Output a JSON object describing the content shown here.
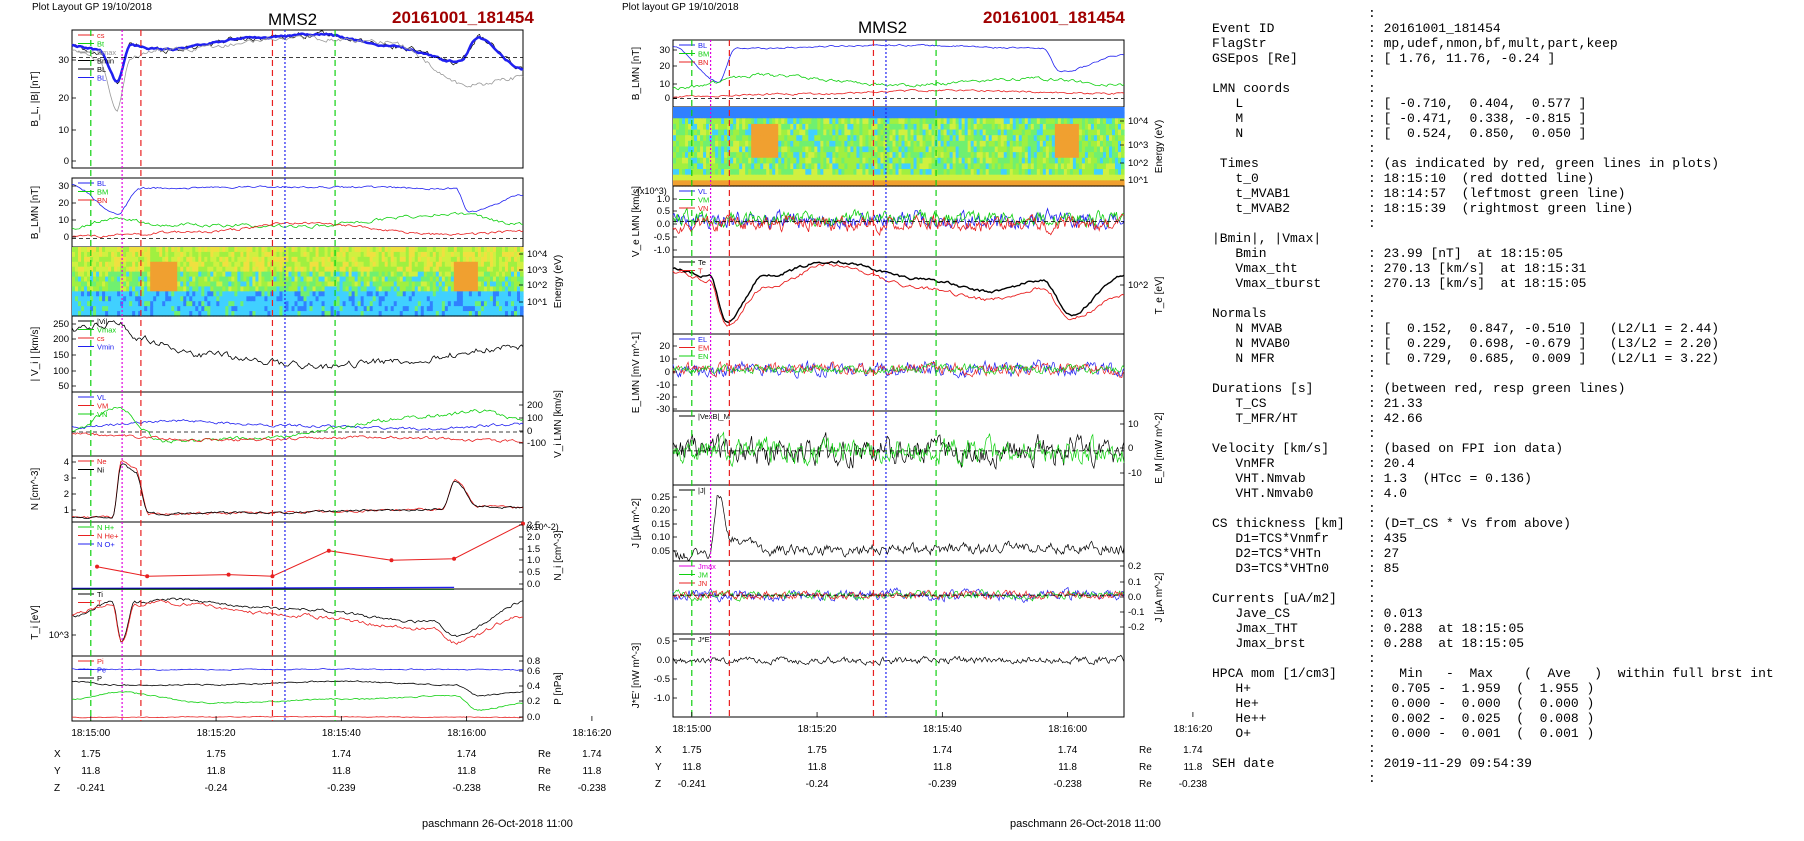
{
  "left_plot": {
    "layout_label": "Plot Layout GP 19/10/2018",
    "spacecraft": "MMS2",
    "event": "20161001_181454",
    "credit": "paschmann 26-Oct-2018 11:00",
    "time_ticks": [
      "18:15:00",
      "18:15:20",
      "18:15:40",
      "18:16:00",
      "18:16:20"
    ],
    "pos_rows": [
      {
        "label": "X",
        "values": [
          "1.75",
          "1.75",
          "1.74",
          "1.74",
          "1.74"
        ],
        "unit": "Re"
      },
      {
        "label": "Y",
        "values": [
          "11.8",
          "11.8",
          "11.8",
          "11.8",
          "11.8"
        ],
        "unit": "Re"
      },
      {
        "label": "Z",
        "values": [
          "-0.241",
          "-0.24",
          "-0.239",
          "-0.238",
          "-0.238"
        ],
        "unit": "Re"
      }
    ]
  },
  "right_plot": {
    "layout_label": "Plot layout GP 19/10/2018",
    "spacecraft": "MMS2",
    "event": "20161001_181454",
    "credit": "paschmann 26-Oct-2018 11:00",
    "time_ticks": [
      "18:15:00",
      "18:15:20",
      "18:15:40",
      "18:16:00",
      "18:16:20"
    ],
    "pos_rows": [
      {
        "label": "X",
        "values": [
          "1.75",
          "1.75",
          "1.74",
          "1.74",
          "1.74"
        ],
        "unit": "Re"
      },
      {
        "label": "Y",
        "values": [
          "11.8",
          "11.8",
          "11.8",
          "11.8",
          "11.8"
        ],
        "unit": "Re"
      },
      {
        "label": "Z",
        "values": [
          "-0.241",
          "-0.24",
          "-0.239",
          "-0.238",
          "-0.238"
        ],
        "unit": "Re"
      }
    ]
  },
  "chart_data": [
    {
      "type": "line",
      "panel": "left-1",
      "ylabel": "B_L, |B| [nT]",
      "ylim": [
        0,
        35
      ],
      "yticks": [
        "0",
        "10",
        "20",
        "30"
      ],
      "legend": [
        "cs",
        "Bt",
        "Bmax",
        "Bmin",
        "BL",
        "BL"
      ]
    },
    {
      "type": "line",
      "panel": "left-2",
      "ylabel": "B_LMN [nT]",
      "ylim": [
        -5,
        35
      ],
      "yticks": [
        "0",
        "10",
        "20",
        "30"
      ],
      "legend": [
        "BL",
        "BM",
        "BN"
      ]
    },
    {
      "type": "heatmap",
      "panel": "left-3",
      "ylabel": "Energy (eV)",
      "yticks": [
        "10^4",
        "10^3",
        "10^2",
        "10^1"
      ]
    },
    {
      "type": "line",
      "panel": "left-4",
      "ylabel": "| V_i | [km/s]",
      "ylim": [
        0,
        270
      ],
      "yticks": [
        "50",
        "100",
        "150",
        "200",
        "250"
      ],
      "legend": [
        "|Vi|",
        "Vmax",
        "cs",
        "Vmin"
      ]
    },
    {
      "type": "line",
      "panel": "left-5",
      "ylabel": "V_i LMN [km/s]",
      "ylim": [
        -150,
        250
      ],
      "yticks": [
        "200",
        "100",
        "0",
        "-100"
      ],
      "legend": [
        "VL",
        "VM",
        "VN"
      ]
    },
    {
      "type": "line",
      "panel": "left-6",
      "ylabel": "N [cm^-3]",
      "ylim": [
        0,
        4.2
      ],
      "yticks": [
        "1",
        "2",
        "3",
        "4"
      ],
      "legend": [
        "Ne",
        "Ni"
      ]
    },
    {
      "type": "line",
      "panel": "left-7",
      "ylabel": "N_i [cm^-3]",
      "ylim": [
        0,
        2.1
      ],
      "yticks": [
        "0.0",
        "0.5",
        "1.0",
        "1.5",
        "2.0",
        "2.5"
      ],
      "annotation": "(x10^-2)",
      "legend": [
        "N H+",
        "N He+",
        "N O+"
      ],
      "series": [
        {
          "name": "N He+",
          "x_s": [
            1,
            9,
            22,
            29,
            38,
            48,
            58,
            69
          ],
          "values": [
            0.7,
            0.4,
            0.45,
            0.4,
            1.2,
            0.9,
            0.95,
            2.05
          ]
        }
      ]
    },
    {
      "type": "line",
      "panel": "left-8",
      "ylabel": "T_i [eV]",
      "yticks": [
        "10^3"
      ],
      "legend": [
        "Ti",
        "T"
      ]
    },
    {
      "type": "line",
      "panel": "left-9",
      "ylabel": "P [nPa]",
      "ylim": [
        0,
        0.9
      ],
      "yticks": [
        "0.0",
        "0.2",
        "0.4",
        "0.6",
        "0.8"
      ],
      "legend": [
        "Pi",
        "Pe",
        "P"
      ]
    },
    {
      "type": "line",
      "panel": "right-1",
      "ylabel": "B_LMN [nT]",
      "ylim": [
        -5,
        35
      ],
      "yticks": [
        "0",
        "10",
        "20",
        "30"
      ],
      "legend": [
        "BL",
        "BM",
        "BN"
      ]
    },
    {
      "type": "heatmap",
      "panel": "right-2",
      "ylabel": "Energy (eV)",
      "yticks": [
        "10^4",
        "10^3",
        "10^2",
        "10^1"
      ]
    },
    {
      "type": "line",
      "panel": "right-3",
      "ylabel": "V_e LMN [km/s]",
      "annotation": "(x10^3)",
      "ylim": [
        -1.3,
        1.3
      ],
      "yticks": [
        "1.0",
        "0.5",
        "0.0",
        "-0.5",
        "-1.0"
      ],
      "legend": [
        "VL",
        "VM",
        "VN"
      ]
    },
    {
      "type": "line",
      "panel": "right-4",
      "ylabel": "T_e [eV]",
      "yticks": [
        "10^2"
      ],
      "legend": [
        "Te",
        "T"
      ]
    },
    {
      "type": "line",
      "panel": "right-5",
      "ylabel": "E_LMN [mV m^-1]",
      "ylim": [
        -30,
        25
      ],
      "yticks": [
        "20",
        "10",
        "0",
        "-10",
        "-20",
        "-30"
      ],
      "legend": [
        "EL",
        "EM",
        "EN"
      ]
    },
    {
      "type": "line",
      "panel": "right-6",
      "ylabel": "E_M [mW m^-2]",
      "ylim": [
        -12,
        14
      ],
      "yticks": [
        "10",
        "0",
        "-10"
      ],
      "legend": [
        "|VexB|_M"
      ]
    },
    {
      "type": "line",
      "panel": "right-7",
      "ylabel": "J [μA m^-2]",
      "ylim": [
        0,
        0.28
      ],
      "yticks": [
        "0.25",
        "0.20",
        "0.15",
        "0.10",
        "0.05"
      ],
      "legend": [
        "|J|"
      ]
    },
    {
      "type": "line",
      "panel": "right-8",
      "ylabel": "J [μA m^-2]",
      "ylim": [
        -0.25,
        0.22
      ],
      "yticks": [
        "0.2",
        "0.1",
        "0.0",
        "-0.1",
        "-0.2"
      ],
      "legend": [
        "Jmax",
        "JM",
        "JN"
      ]
    },
    {
      "type": "line",
      "panel": "right-9",
      "ylabel": "J*E' [nW m^-3]",
      "ylim": [
        -1.3,
        0.6
      ],
      "yticks": [
        "0.5",
        "0.0",
        "-0.5",
        "-1.0"
      ],
      "legend": [
        "J*E'"
      ]
    }
  ],
  "info": {
    "lines": [
      [
        "",
        ":"
      ],
      [
        "Event ID",
        ": 20161001_181454"
      ],
      [
        "FlagStr",
        ": mp,udef,nmon,bf,mult,part,keep"
      ],
      [
        "GSEpos [Re]",
        ": [ 1.76, 11.76, -0.24 ]"
      ],
      [
        "",
        ":"
      ],
      [
        "LMN coords",
        ":"
      ],
      [
        "   L",
        ": [ -0.710,  0.404,  0.577 ]"
      ],
      [
        "   M",
        ": [ -0.471,  0.338, -0.815 ]"
      ],
      [
        "   N",
        ": [  0.524,  0.850,  0.050 ]"
      ],
      [
        "",
        ":"
      ],
      [
        " Times",
        ": (as indicated by red, green lines in plots)"
      ],
      [
        "   t_0",
        ": 18:15:10  (red dotted line)"
      ],
      [
        "   t_MVAB1",
        ": 18:14:57  (leftmost green line)"
      ],
      [
        "   t_MVAB2",
        ": 18:15:39  (rightmost green line)"
      ],
      [
        "",
        ":"
      ],
      [
        "|Bmin|, |Vmax|",
        ""
      ],
      [
        "   Bmin",
        ": 23.99 [nT]  at 18:15:05"
      ],
      [
        "   Vmax_tht",
        ": 270.13 [km/s]  at 18:15:31"
      ],
      [
        "   Vmax_tburst",
        ": 270.13 [km/s]  at 18:15:05"
      ],
      [
        "",
        ":"
      ],
      [
        "Normals",
        ":"
      ],
      [
        "   N MVAB",
        ": [  0.152,  0.847, -0.510 ]   (L2/L1 = 2.44)"
      ],
      [
        "   N MVAB0",
        ": [  0.229,  0.698, -0.679 ]   (L3/L2 = 2.20)"
      ],
      [
        "   N MFR",
        ": [  0.729,  0.685,  0.009 ]   (L2/L1 = 3.22)"
      ],
      [
        "",
        ":"
      ],
      [
        "Durations [s]",
        ": (between red, resp green lines)"
      ],
      [
        "   T_CS",
        ": 21.33"
      ],
      [
        "   T_MFR/HT",
        ": 42.66"
      ],
      [
        "",
        ":"
      ],
      [
        "Velocity [km/s]",
        ": (based on FPI ion data)"
      ],
      [
        "   VnMFR",
        ": 20.4"
      ],
      [
        "   VHT.Nmvab",
        ": 1.3  (HTcc = 0.136)"
      ],
      [
        "   VHT.Nmvab0",
        ": 4.0"
      ],
      [
        "",
        ":"
      ],
      [
        "CS thickness [km]",
        ": (D=T_CS * Vs from above)"
      ],
      [
        "   D1=TCS*Vnmfr",
        ": 435"
      ],
      [
        "   D2=TCS*VHTn",
        ": 27"
      ],
      [
        "   D3=TCS*VHTn0",
        ": 85"
      ],
      [
        "",
        ":"
      ],
      [
        "Currents [uA/m2]",
        ":"
      ],
      [
        "   Jave_CS",
        ": 0.013"
      ],
      [
        "   Jmax_THT",
        ": 0.288  at 18:15:05"
      ],
      [
        "   Jmax_brst",
        ": 0.288  at 18:15:05"
      ],
      [
        "",
        ":"
      ],
      [
        "HPCA mom [1/cm3]",
        ":   Min   -  Max    (  Ave   )  within full brst int"
      ],
      [
        "   H+",
        ":  0.705 -  1.959  (  1.955 )"
      ],
      [
        "   He+",
        ":  0.000 -  0.000  (  0.000 )"
      ],
      [
        "   He++",
        ":  0.002 -  0.025  (  0.008 )"
      ],
      [
        "   O+",
        ":  0.000 -  0.001  (  0.001 )"
      ],
      [
        "",
        ":"
      ],
      [
        "SEH date",
        ": 2019-11-29 09:54:39"
      ],
      [
        "",
        ":"
      ]
    ]
  },
  "colors": {
    "red": "#e82020",
    "green": "#10d010",
    "blue": "#2020f0",
    "black": "#000000",
    "magenta": "#e000e0",
    "grey": "#9a9a9a",
    "event": "#a00000"
  }
}
